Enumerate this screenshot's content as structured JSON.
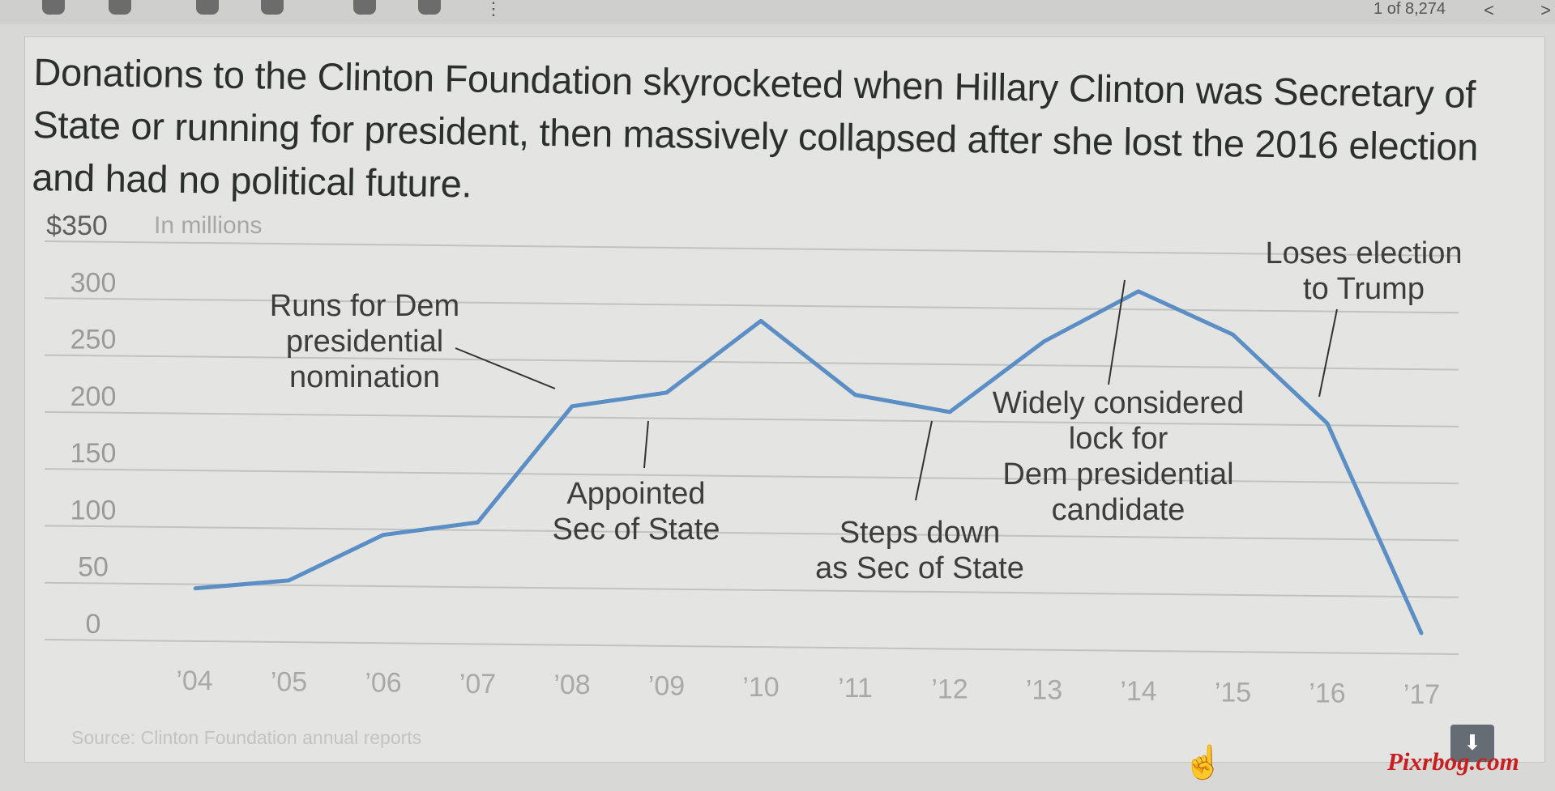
{
  "toolbar": {
    "more_icon": "more-vert-icon",
    "counter": "1 of 8,274",
    "prev_glyph": "<",
    "next_glyph": ">"
  },
  "headline": "Donations to the Clinton Foundation skyrocketed when Hillary Clinton was Secretary of State or running for president, then massively collapsed after she lost the 2016 election and had no political future.",
  "chart_data": {
    "type": "line",
    "unit_label": "In millions",
    "y_tick_labels": [
      "0",
      "50",
      "100",
      "150",
      "200",
      "250",
      "300",
      "$350"
    ],
    "y_ticks": [
      0,
      50,
      100,
      150,
      200,
      250,
      300,
      350
    ],
    "ylim": [
      0,
      350
    ],
    "categories": [
      "’04",
      "’05",
      "’06",
      "’07",
      "’08",
      "’09",
      "’10",
      "’11",
      "’12",
      "’13",
      "’14",
      "’15",
      "’16",
      "’17"
    ],
    "series": [
      {
        "color": "#5b8ec4",
        "values": [
          45,
          52,
          92,
          103,
          205,
          217,
          280,
          215,
          200,
          262,
          306,
          268,
          190,
          5
        ]
      }
    ],
    "annotations": [
      {
        "lines": [
          "Runs for Dem",
          "presidential",
          "nomination"
        ]
      },
      {
        "lines": [
          "Appointed",
          "Sec of State"
        ]
      },
      {
        "lines": [
          "Steps down",
          "as Sec of State"
        ]
      },
      {
        "lines": [
          "Widely considered",
          "lock for",
          "Dem presidential",
          "candidate"
        ]
      },
      {
        "lines": [
          "Loses election",
          "to Trump"
        ]
      }
    ],
    "grid": true,
    "legend": "none"
  },
  "source": "Source: Clinton Foundation annual reports",
  "download_icon": "download-icon",
  "cursor_icon": "hand-pointer-icon",
  "watermark": "Pixrbog.com"
}
